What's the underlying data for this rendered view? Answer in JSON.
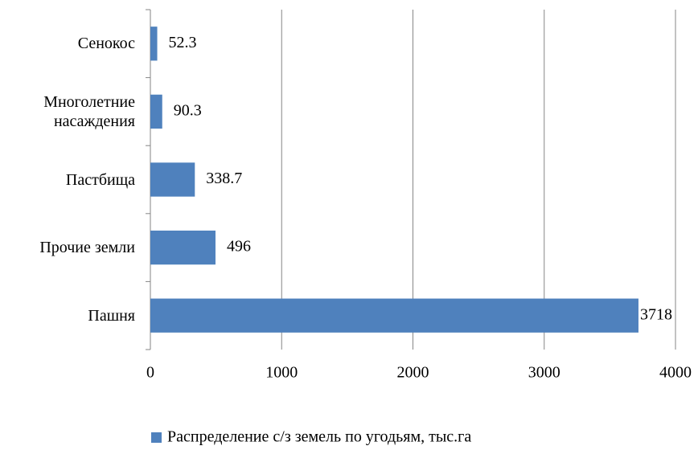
{
  "chart_data": {
    "type": "hbar",
    "categories": [
      "Сенокос",
      "Многолетние насаждения",
      "Пастбища",
      "Прочие земли",
      "Пашня"
    ],
    "series": [
      {
        "name": "Распределение с/з земель по угодьям, тыс.га",
        "color": "#4f81bd",
        "values": [
          52.3,
          90.3,
          338.7,
          496,
          3718
        ]
      }
    ],
    "xlim": [
      0,
      4000
    ],
    "xticks": [
      0,
      1000,
      2000,
      3000,
      4000
    ],
    "grid": true,
    "legend": "bottom"
  }
}
